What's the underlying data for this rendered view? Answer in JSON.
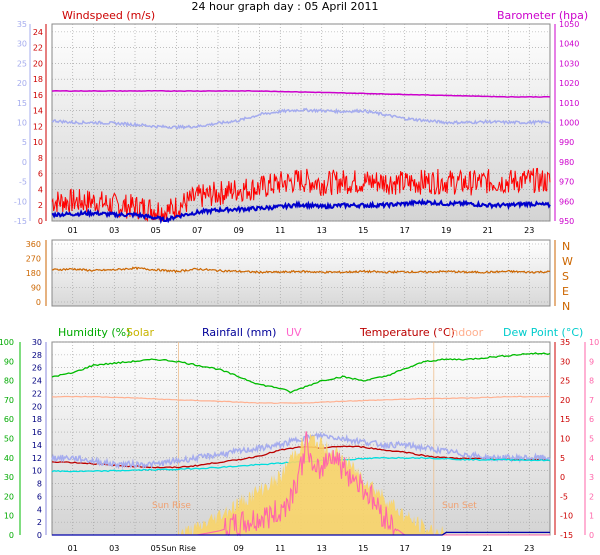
{
  "title": "24 hour graph day : 05 April 2011",
  "chart_data": [
    {
      "type": "line",
      "panel": "wind-barometer",
      "labels": {
        "windspeed": "Windspeed (m/s)",
        "barometer": "Barometer (hpa)"
      },
      "x_ticks": [
        "01",
        "03",
        "05",
        "07",
        "09",
        "11",
        "13",
        "15",
        "17",
        "19",
        "21",
        "23"
      ],
      "x_range_hours": [
        0,
        24
      ],
      "y_left_outer_range": [
        -15,
        35
      ],
      "y_left_outer_ticks": [
        -15,
        -10,
        -5,
        0,
        5,
        10,
        15,
        20,
        25,
        30,
        35
      ],
      "y_left_range": [
        0,
        25
      ],
      "y_left_ticks": [
        0,
        2,
        4,
        6,
        8,
        10,
        12,
        14,
        16,
        18,
        20,
        22,
        24
      ],
      "y_right_range": [
        950,
        1050
      ],
      "y_right_ticks": [
        950,
        960,
        970,
        980,
        990,
        1000,
        1010,
        1020,
        1030,
        1040,
        1050
      ],
      "series": [
        {
          "key": "gust",
          "color": "#ff0000",
          "x": [
            0,
            1,
            2,
            3,
            4,
            5,
            5.5,
            6,
            7,
            8,
            9,
            10,
            11,
            12,
            13,
            14,
            15,
            16,
            17,
            18,
            19,
            20,
            21,
            22,
            23,
            24
          ],
          "y": [
            2.5,
            2.5,
            2.5,
            2.0,
            1.8,
            1.5,
            1.2,
            1.8,
            3.0,
            3.5,
            4.0,
            4.2,
            4.8,
            5.2,
            4.8,
            5.0,
            5.0,
            5.0,
            4.8,
            5.0,
            5.0,
            4.8,
            5.0,
            5.0,
            5.2,
            5.0
          ]
        },
        {
          "key": "windspeed",
          "color": "#0000cc",
          "x": [
            0,
            1,
            2,
            3,
            4,
            5,
            5.5,
            6,
            7,
            8,
            9,
            10,
            11,
            12,
            13,
            14,
            15,
            16,
            17,
            18,
            19,
            20,
            21,
            22,
            23,
            24
          ],
          "y": [
            0.8,
            0.9,
            1.0,
            0.8,
            0.8,
            0.4,
            0.1,
            0.6,
            1.1,
            1.4,
            1.5,
            1.6,
            1.8,
            2.1,
            1.8,
            2.0,
            2.0,
            2.0,
            2.2,
            2.4,
            2.2,
            2.2,
            2.0,
            2.0,
            2.2,
            2.0
          ]
        },
        {
          "key": "windspeed_left_scale",
          "color": "#a5acee",
          "x": [
            0,
            1,
            2,
            3,
            4,
            5,
            6,
            7,
            8,
            9,
            10,
            11,
            12,
            13,
            14,
            15,
            16,
            17,
            18,
            19,
            20,
            21,
            22,
            23,
            24
          ],
          "y": [
            10.5,
            10,
            10,
            9.8,
            9.5,
            9,
            8.8,
            9,
            9.8,
            10.5,
            12,
            12.8,
            13.2,
            13,
            12.8,
            13,
            12,
            11,
            10.5,
            10,
            10,
            10.2,
            10,
            10,
            10.2
          ]
        },
        {
          "key": "barometer",
          "color": "#cc00cc",
          "x": [
            0,
            2,
            4,
            6,
            8,
            10,
            12,
            14,
            16,
            18,
            20,
            22,
            24
          ],
          "y": [
            1016,
            1016,
            1016,
            1016,
            1016,
            1016,
            1015.5,
            1015,
            1014.5,
            1014,
            1013.5,
            1013,
            1013
          ]
        }
      ]
    },
    {
      "type": "line",
      "panel": "wind-direction",
      "x_range_hours": [
        0,
        24
      ],
      "y_range": [
        0,
        360
      ],
      "y_ticks": [
        0,
        90,
        180,
        270,
        360
      ],
      "compass": [
        "N",
        "W",
        "S",
        "E",
        "N"
      ],
      "series": [
        {
          "key": "direction",
          "color": "#cc6600",
          "x": [
            0,
            1,
            2,
            3,
            4,
            5,
            6,
            7,
            8,
            9,
            10,
            11,
            12,
            13,
            14,
            15,
            16,
            17,
            18,
            19,
            20,
            21,
            22,
            23,
            24
          ],
          "y": [
            200,
            205,
            195,
            200,
            210,
            200,
            190,
            205,
            195,
            190,
            185,
            185,
            190,
            185,
            185,
            190,
            185,
            188,
            185,
            190,
            185,
            185,
            190,
            185,
            188
          ]
        }
      ]
    },
    {
      "type": "line",
      "panel": "humidity-temperature",
      "labels": {
        "humidity": "Humidity (%)",
        "solar": "Solar",
        "rainfall": "Rainfall (mm)",
        "uv": "UV",
        "temperature": "Temperature (°C)",
        "indoor": "Indoor",
        "dewpoint": "Dew Point (°C)",
        "sunrise": "Sun Rise",
        "sunset": "Sun Set"
      },
      "x_ticks": [
        "01",
        "03",
        "05",
        "Sun Rise",
        "09",
        "11",
        "13",
        "15",
        "17",
        "19",
        "21",
        "23"
      ],
      "x_range_hours": [
        0,
        24
      ],
      "sunrise_hour": 6.1,
      "sunset_hour": 18.4,
      "y_humidity_range": [
        0,
        100
      ],
      "y_humidity_ticks": [
        0,
        10,
        20,
        30,
        40,
        50,
        60,
        70,
        80,
        90,
        100
      ],
      "y_rain_range": [
        0,
        30
      ],
      "y_rain_ticks": [
        0,
        2,
        4,
        6,
        8,
        10,
        12,
        14,
        16,
        18,
        20,
        22,
        24,
        26,
        28,
        30
      ],
      "y_temp_range": [
        -15,
        35
      ],
      "y_temp_ticks": [
        -15,
        -10,
        -5,
        0,
        5,
        10,
        15,
        20,
        25,
        30,
        35
      ],
      "y_uv_range": [
        0,
        10
      ],
      "y_uv_ticks": [
        0,
        1,
        2,
        3,
        4,
        5,
        6,
        7,
        8,
        9,
        10
      ],
      "series": [
        {
          "key": "humidity",
          "color": "#00bb00",
          "x": [
            0,
            1,
            2,
            3,
            4,
            5,
            6,
            7,
            8,
            9,
            10,
            11,
            11.5,
            12,
            13,
            14,
            15,
            16,
            17,
            18,
            19,
            20,
            21,
            22,
            23,
            24
          ],
          "y": [
            82,
            84,
            88,
            89,
            90,
            91,
            90,
            88,
            86,
            82,
            78,
            76,
            74,
            76,
            80,
            82,
            80,
            82,
            86,
            90,
            91,
            91,
            92,
            93,
            94,
            94
          ]
        },
        {
          "key": "indoor",
          "color": "#ffb090",
          "x": [
            0,
            2,
            4,
            6,
            8,
            10,
            12,
            14,
            16,
            18,
            20,
            22,
            24
          ],
          "y": [
            21.5,
            21.5,
            21.3,
            21,
            20.8,
            20.5,
            20.5,
            20.8,
            21,
            21.2,
            21.3,
            21.5,
            21.5
          ]
        },
        {
          "key": "temperature",
          "color": "#bb0000",
          "x": [
            0,
            1,
            2,
            3,
            4,
            5,
            6,
            7,
            8,
            9,
            10,
            11,
            12,
            13,
            14,
            15,
            16,
            17,
            18,
            19,
            20,
            21,
            22,
            23,
            24
          ],
          "y": [
            4,
            3.8,
            3.5,
            3,
            2.8,
            2.5,
            2.5,
            3,
            3.8,
            4.5,
            5.5,
            7,
            7.8,
            7.5,
            8,
            7.8,
            7,
            6.5,
            5.5,
            5,
            4.8,
            4.8,
            4.5,
            4.5,
            4.5
          ]
        },
        {
          "key": "temp_left_scale",
          "color": "#a5acee",
          "x": [
            0,
            1,
            2,
            3,
            4,
            5,
            6,
            7,
            8,
            9,
            10,
            11,
            12,
            13,
            14,
            15,
            16,
            17,
            18,
            19,
            20,
            21,
            22,
            23,
            24
          ],
          "y": [
            12,
            12,
            11.5,
            11,
            11,
            11,
            11.5,
            12,
            12.5,
            13,
            13.5,
            14,
            15,
            15.5,
            15,
            14.5,
            14,
            14,
            13.5,
            13,
            12.5,
            12,
            12,
            12,
            12
          ]
        },
        {
          "key": "dewpoint",
          "color": "#00dddd",
          "x": [
            0,
            2,
            4,
            6,
            8,
            10,
            12,
            14,
            16,
            18,
            20,
            22,
            24
          ],
          "y": [
            1.5,
            1.5,
            1.8,
            2,
            2.5,
            3.2,
            4,
            4.5,
            5,
            5,
            4.5,
            4.5,
            4.3
          ]
        },
        {
          "key": "solar",
          "color": "#f8d468",
          "x": [
            0,
            6,
            7,
            8,
            9,
            10,
            11,
            11.5,
            12,
            12.5,
            13,
            13.5,
            14,
            15,
            16,
            17,
            18,
            19,
            24
          ],
          "y": [
            0,
            0,
            1,
            3,
            5,
            7,
            9,
            12,
            14,
            15,
            14,
            13,
            12,
            9,
            6,
            3,
            1,
            0,
            0
          ]
        },
        {
          "key": "uv",
          "color": "#ff66aa",
          "x": [
            0,
            7,
            8,
            9,
            10,
            11,
            11.5,
            12,
            12.3,
            12.6,
            13,
            13.5,
            14,
            15,
            16,
            16.5,
            17,
            24
          ],
          "y": [
            0,
            0,
            0.2,
            0.5,
            0.8,
            1.2,
            2,
            3.5,
            5,
            3,
            3.5,
            4.3,
            3.5,
            2.5,
            1,
            0.4,
            0,
            0
          ]
        },
        {
          "key": "rainfall",
          "color": "#0000aa",
          "x": [
            0,
            18.8,
            19,
            24
          ],
          "y": [
            0,
            0,
            0.4,
            0.4
          ]
        }
      ]
    }
  ]
}
